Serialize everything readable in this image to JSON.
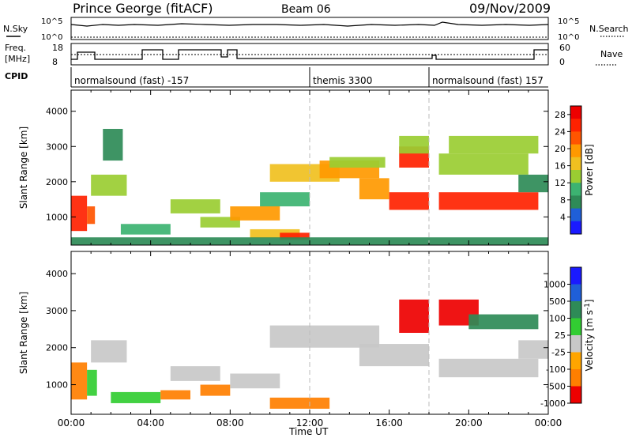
{
  "header": {
    "station": "Prince George (fitACF)",
    "beam": "Beam 06",
    "date": "09/Nov/2009"
  },
  "top_panels": {
    "nsky_label": "N.Sky",
    "nsearch_label": "N.Search",
    "nsky_ticks": [
      "10^5",
      "10^0"
    ],
    "nsearch_ticks": [
      "10^5",
      "10^0"
    ],
    "freq_label_1": "Freq.",
    "freq_label_2": "[MHz]",
    "freq_ticks": [
      "18",
      "8"
    ],
    "nave_label": "Nave",
    "nave_ticks": [
      "60",
      "0"
    ],
    "cpid_label": "CPID",
    "cpid_segments": [
      {
        "label": "normalsound (fast) -157",
        "start_h": 0,
        "end_h": 12
      },
      {
        "label": "themis 3300",
        "start_h": 12,
        "end_h": 18
      },
      {
        "label": "normalsound (fast) 157",
        "start_h": 18,
        "end_h": 24
      }
    ]
  },
  "colors": {
    "power_scale": [
      "#1a1aff",
      "#1f5fd8",
      "#2e8b57",
      "#3cb371",
      "#9acd32",
      "#f0c020",
      "#ff9900",
      "#ff5500",
      "#ff2200",
      "#ee0000"
    ],
    "velocity_scale": [
      "#ee0000",
      "#ff4500",
      "#ff8c00",
      "#ffa500",
      "#c8c8c8",
      "#c8c8c8",
      "#32cd32",
      "#2e8b57",
      "#1f5fd8",
      "#1a1aff"
    ]
  },
  "chart_data": [
    {
      "type": "heatmap",
      "name": "power",
      "ylabel": "Slant Range [km]",
      "xlabel": "",
      "x_ticks": [
        "00:00",
        "04:00",
        "08:00",
        "12:00",
        "16:00",
        "20:00",
        "00:00"
      ],
      "y_ticks": [
        "1000",
        "2000",
        "3000",
        "4000"
      ],
      "xlim": [
        0,
        24
      ],
      "ylim": [
        200,
        4600
      ],
      "colorbar_label": "Power [dB]",
      "colorbar_ticks": [
        "4",
        "8",
        "12",
        "16",
        "20",
        "24",
        "28"
      ],
      "colorbar_range": [
        0,
        30
      ],
      "regions": [
        {
          "t0": 0.0,
          "t1": 0.8,
          "r0": 600,
          "r1": 1600,
          "v": 26
        },
        {
          "t0": 0.8,
          "t1": 1.2,
          "r0": 800,
          "r1": 1300,
          "v": 22
        },
        {
          "t0": 1.0,
          "t1": 2.8,
          "r0": 1600,
          "r1": 2200,
          "v": 14
        },
        {
          "t0": 1.6,
          "t1": 2.6,
          "r0": 2600,
          "r1": 3500,
          "v": 8
        },
        {
          "t0": 2.5,
          "t1": 5.0,
          "r0": 500,
          "r1": 800,
          "v": 10
        },
        {
          "t0": 5.0,
          "t1": 7.5,
          "r0": 1100,
          "r1": 1500,
          "v": 12
        },
        {
          "t0": 6.5,
          "t1": 8.5,
          "r0": 700,
          "r1": 1000,
          "v": 14
        },
        {
          "t0": 8.0,
          "t1": 10.5,
          "r0": 900,
          "r1": 1300,
          "v": 20
        },
        {
          "t0": 9.0,
          "t1": 11.5,
          "r0": 400,
          "r1": 650,
          "v": 16
        },
        {
          "t0": 10.5,
          "t1": 12.0,
          "r0": 350,
          "r1": 550,
          "v": 26
        },
        {
          "t0": 9.5,
          "t1": 12.0,
          "r0": 1300,
          "r1": 1700,
          "v": 10
        },
        {
          "t0": 10.0,
          "t1": 13.5,
          "r0": 2000,
          "r1": 2500,
          "v": 16
        },
        {
          "t0": 12.5,
          "t1": 15.5,
          "r0": 2100,
          "r1": 2600,
          "v": 20
        },
        {
          "t0": 13.0,
          "t1": 15.8,
          "r0": 2400,
          "r1": 2700,
          "v": 12
        },
        {
          "t0": 14.5,
          "t1": 16.0,
          "r0": 1500,
          "r1": 2100,
          "v": 18
        },
        {
          "t0": 16.0,
          "t1": 18.0,
          "r0": 1200,
          "r1": 1700,
          "v": 24
        },
        {
          "t0": 16.5,
          "t1": 18.0,
          "r0": 2400,
          "r1": 3000,
          "v": 24
        },
        {
          "t0": 16.5,
          "t1": 18.0,
          "r0": 2800,
          "r1": 3300,
          "v": 12
        },
        {
          "t0": 18.5,
          "t1": 23.5,
          "r0": 1200,
          "r1": 1700,
          "v": 24
        },
        {
          "t0": 18.5,
          "t1": 23.0,
          "r0": 2200,
          "r1": 2800,
          "v": 14
        },
        {
          "t0": 19.0,
          "t1": 23.5,
          "r0": 2800,
          "r1": 3300,
          "v": 12
        },
        {
          "t0": 22.5,
          "t1": 24.0,
          "r0": 1700,
          "r1": 2200,
          "v": 8
        },
        {
          "t0": 0.0,
          "t1": 24.0,
          "r0": 200,
          "r1": 420,
          "v": 6
        }
      ]
    },
    {
      "type": "heatmap",
      "name": "velocity",
      "ylabel": "Slant Range [km]",
      "xlabel": "Time UT",
      "x_ticks": [
        "00:00",
        "04:00",
        "08:00",
        "12:00",
        "16:00",
        "20:00",
        "00:00"
      ],
      "y_ticks": [
        "1000",
        "2000",
        "3000",
        "4000"
      ],
      "xlim": [
        0,
        24
      ],
      "ylim": [
        200,
        4600
      ],
      "colorbar_label": "Velocity [m s-1]",
      "colorbar_ticks": [
        "1000",
        "500",
        "100",
        "25",
        "-25",
        "-100",
        "-500",
        "-1000"
      ],
      "regions": [
        {
          "t0": 0.0,
          "t1": 0.8,
          "r0": 600,
          "r1": 1600,
          "v": -100
        },
        {
          "t0": 0.8,
          "t1": 1.3,
          "r0": 700,
          "r1": 1400,
          "v": 100
        },
        {
          "t0": 1.0,
          "t1": 2.8,
          "r0": 1600,
          "r1": 2200,
          "v": 0
        },
        {
          "t0": 2.0,
          "t1": 4.5,
          "r0": 500,
          "r1": 800,
          "v": 100
        },
        {
          "t0": 4.5,
          "t1": 6.0,
          "r0": 600,
          "r1": 850,
          "v": -100
        },
        {
          "t0": 5.0,
          "t1": 7.5,
          "r0": 1100,
          "r1": 1500,
          "v": 0
        },
        {
          "t0": 6.5,
          "t1": 8.0,
          "r0": 700,
          "r1": 1000,
          "v": -300
        },
        {
          "t0": 8.0,
          "t1": 10.5,
          "r0": 900,
          "r1": 1300,
          "v": 0
        },
        {
          "t0": 10.0,
          "t1": 13.0,
          "r0": 350,
          "r1": 650,
          "v": -100
        },
        {
          "t0": 10.0,
          "t1": 15.5,
          "r0": 2000,
          "r1": 2600,
          "v": 0
        },
        {
          "t0": 14.5,
          "t1": 18.0,
          "r0": 1500,
          "r1": 2100,
          "v": 0
        },
        {
          "t0": 16.5,
          "t1": 18.0,
          "r0": 2400,
          "r1": 3300,
          "v": -600
        },
        {
          "t0": 18.5,
          "t1": 23.5,
          "r0": 1200,
          "r1": 1700,
          "v": 0
        },
        {
          "t0": 18.5,
          "t1": 20.5,
          "r0": 2600,
          "r1": 3300,
          "v": -600
        },
        {
          "t0": 20.0,
          "t1": 23.5,
          "r0": 2500,
          "r1": 2900,
          "v": 200
        },
        {
          "t0": 22.5,
          "t1": 24.0,
          "r0": 1700,
          "r1": 2200,
          "v": 0
        }
      ]
    }
  ]
}
